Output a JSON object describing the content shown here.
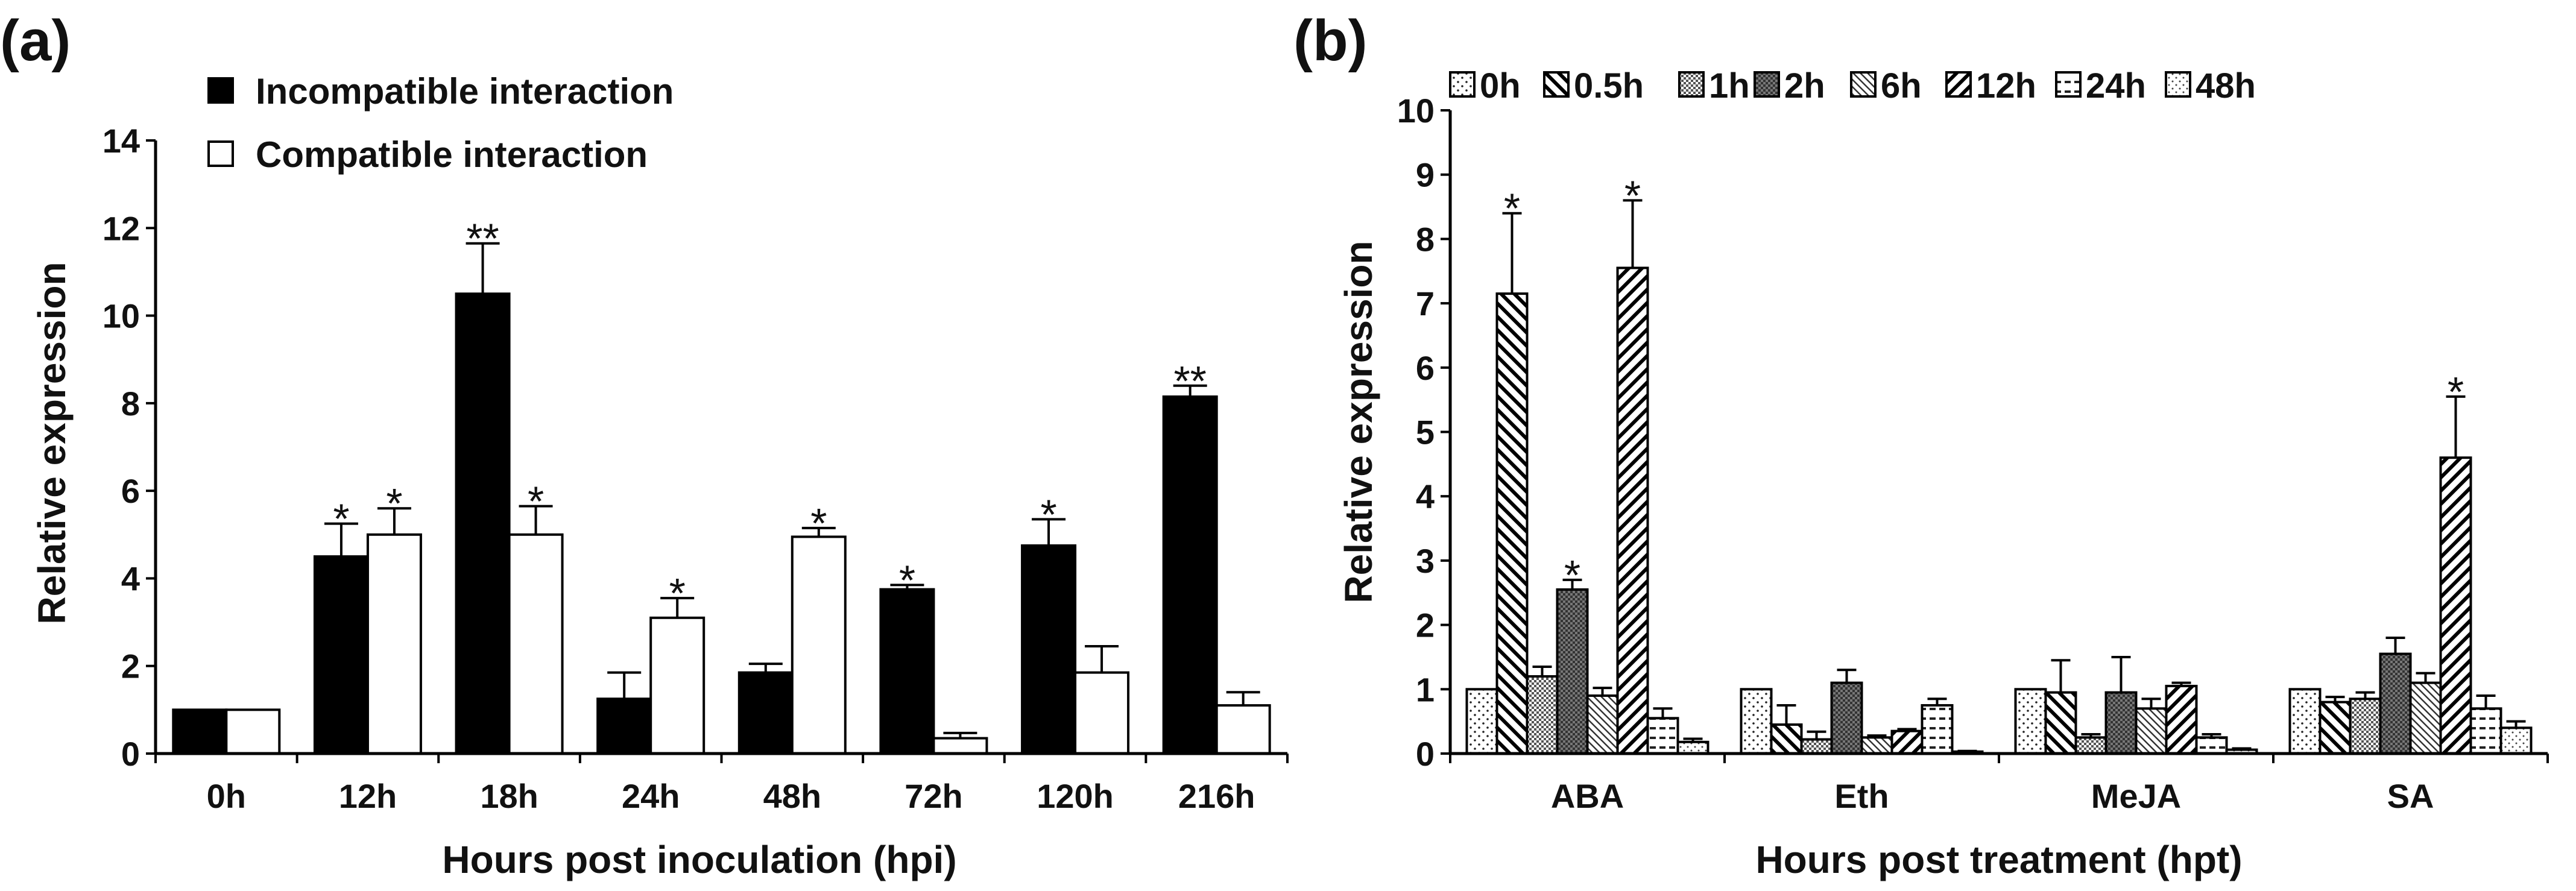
{
  "chart_data": [
    {
      "panel": "(a)",
      "type": "bar",
      "title": "",
      "xlabel": "Hours post inoculation (hpi)",
      "ylabel": "Relative expression",
      "ylim": [
        0,
        14
      ],
      "yticks": [
        "0",
        "2",
        "4",
        "6",
        "8",
        "10",
        "12",
        "14"
      ],
      "categories": [
        "0h",
        "12h",
        "18h",
        "24h",
        "48h",
        "72h",
        "120h",
        "216h"
      ],
      "legend": [
        "Incompatible interaction",
        "Compatible interaction"
      ],
      "series": [
        {
          "name": "Incompatible interaction",
          "color": "#000000",
          "values": [
            1.0,
            4.5,
            10.5,
            1.25,
            1.85,
            3.75,
            4.75,
            8.15
          ],
          "errors": [
            0,
            0.75,
            1.15,
            0.6,
            0.2,
            0.1,
            0.6,
            0.25
          ],
          "annotations": [
            "",
            "*",
            "**",
            "",
            "",
            "*",
            "*",
            "**"
          ]
        },
        {
          "name": "Compatible interaction",
          "color": "#ffffff",
          "values": [
            1.0,
            5.0,
            5.0,
            3.1,
            4.95,
            0.35,
            1.85,
            1.1
          ],
          "errors": [
            0,
            0.6,
            0.65,
            0.45,
            0.2,
            0.12,
            0.6,
            0.3
          ],
          "annotations": [
            "",
            "*",
            "*",
            "*",
            "*",
            "",
            "",
            ""
          ]
        }
      ]
    },
    {
      "panel": "(b)",
      "type": "bar",
      "title": "",
      "xlabel": "Hours post treatment (hpt)",
      "ylabel": "Relative expression",
      "ylim": [
        0,
        10
      ],
      "yticks": [
        "0",
        "1",
        "2",
        "3",
        "4",
        "5",
        "6",
        "7",
        "8",
        "9",
        "10"
      ],
      "categories": [
        "ABA",
        "Eth",
        "MeJA",
        "SA"
      ],
      "legend": [
        "0h",
        "0.5h",
        "1h",
        "2h",
        "6h",
        "12h",
        "24h",
        "48h"
      ],
      "series": [
        {
          "name": "0h",
          "pattern": "sparse-dots",
          "values": [
            1.0,
            1.0,
            1.0,
            1.0
          ],
          "errors": [
            0,
            0,
            0,
            0
          ],
          "annotations": [
            "",
            "",
            "",
            ""
          ]
        },
        {
          "name": "0.5h",
          "pattern": "back-diagonal",
          "values": [
            7.15,
            0.45,
            0.95,
            0.8
          ],
          "errors": [
            1.25,
            0.3,
            0.5,
            0.08
          ],
          "annotations": [
            "*",
            "",
            "",
            ""
          ]
        },
        {
          "name": "1h",
          "pattern": "dense-dots",
          "values": [
            1.2,
            0.22,
            0.25,
            0.85
          ],
          "errors": [
            0.15,
            0.12,
            0.05,
            0.1
          ],
          "annotations": [
            "",
            "",
            "",
            ""
          ]
        },
        {
          "name": "2h",
          "pattern": "dark-grid",
          "values": [
            2.55,
            1.1,
            0.95,
            1.55
          ],
          "errors": [
            0.15,
            0.2,
            0.55,
            0.25
          ],
          "annotations": [
            "*",
            "",
            "",
            ""
          ]
        },
        {
          "name": "6h",
          "pattern": "thin-diagonal",
          "values": [
            0.9,
            0.25,
            0.7,
            1.1
          ],
          "errors": [
            0.12,
            0.03,
            0.15,
            0.15
          ],
          "annotations": [
            "",
            "",
            "",
            ""
          ]
        },
        {
          "name": "12h",
          "pattern": "forward-diagonal",
          "values": [
            7.55,
            0.35,
            1.05,
            4.6
          ],
          "errors": [
            1.05,
            0.03,
            0.05,
            0.95
          ],
          "annotations": [
            "*",
            "",
            "",
            "*"
          ]
        },
        {
          "name": "24h",
          "pattern": "horizontal",
          "values": [
            0.55,
            0.75,
            0.25,
            0.7
          ],
          "errors": [
            0.15,
            0.1,
            0.05,
            0.2
          ],
          "annotations": [
            "",
            "",
            "",
            ""
          ]
        },
        {
          "name": "48h",
          "pattern": "light-dots",
          "values": [
            0.18,
            0.03,
            0.06,
            0.4
          ],
          "errors": [
            0.05,
            0.01,
            0.02,
            0.1
          ],
          "annotations": [
            "",
            "",
            "",
            ""
          ]
        }
      ]
    }
  ]
}
